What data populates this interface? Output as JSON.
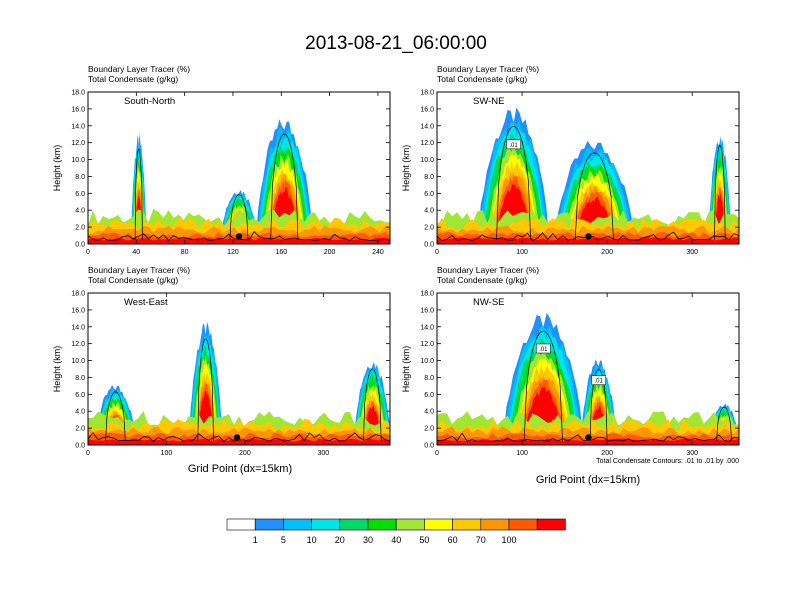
{
  "figure": {
    "title": "2013-08-21_06:00:00",
    "shared_xlabel": "Grid Point (dx=15km)",
    "contour_note": "Total Condensate Contours: .01 to .01 by .000"
  },
  "colorbar": {
    "labels": [
      "1",
      "5",
      "10",
      "20",
      "30",
      "40",
      "50",
      "60",
      "70",
      "100"
    ],
    "colors": [
      "#ffffff",
      "#1e90ff",
      "#00bfff",
      "#00e5e5",
      "#00d86a",
      "#00e000",
      "#a0e632",
      "#ffff00",
      "#ffc800",
      "#ff9600",
      "#ff5a00",
      "#ff0000"
    ]
  },
  "chart_data": [
    {
      "type": "heatmap",
      "panel": "South-North",
      "title_line1": "Boundary Layer Tracer    (%)",
      "title_line2": "Total Condensate    (g/kg)",
      "ylabel": "Height (km)",
      "xlabel": "",
      "xlim": [
        0,
        250
      ],
      "ylim": [
        0,
        18
      ],
      "xticks": [
        "0",
        "40",
        "80",
        "120",
        "160",
        "200",
        "240"
      ],
      "yticks": [
        "0.0",
        "2.0",
        "4.0",
        "6.0",
        "8.0",
        "10.0",
        "12.0",
        "14.0",
        "16.0",
        "18.0"
      ],
      "contour_labels": [],
      "plumes": [
        {
          "x": [
            36,
            48
          ],
          "top": 12.5
        },
        {
          "x": [
            140,
            185
          ],
          "top": 14.5
        },
        {
          "x": [
            110,
            140
          ],
          "top": 6.5
        }
      ],
      "dot_x": 125
    },
    {
      "type": "heatmap",
      "panel": "SW-NE",
      "title_line1": "Boundary Layer Tracer    (%)",
      "title_line2": "Total Condensate    (g/kg)",
      "ylabel": "Height (km)",
      "xlabel": "",
      "xlim": [
        0,
        355
      ],
      "ylim": [
        0,
        18
      ],
      "xticks": [
        "0",
        "100",
        "200",
        "300"
      ],
      "yticks": [
        "0.0",
        "2.0",
        "4.0",
        "6.0",
        "8.0",
        "10.0",
        "12.0",
        "14.0",
        "16.0",
        "18.0"
      ],
      "contour_labels": [
        ".01"
      ],
      "plumes": [
        {
          "x": [
            50,
            130
          ],
          "top": 15.5
        },
        {
          "x": [
            140,
            230
          ],
          "top": 12
        },
        {
          "x": [
            320,
            345
          ],
          "top": 13
        }
      ],
      "dot_x": 178
    },
    {
      "type": "heatmap",
      "panel": "West-East",
      "title_line1": "Boundary Layer Tracer    (%)",
      "title_line2": "Total Condensate    (g/kg)",
      "ylabel": "Height (km)",
      "xlabel": "",
      "xlim": [
        0,
        385
      ],
      "ylim": [
        0,
        18
      ],
      "xticks": [
        "0",
        "100",
        "200",
        "300"
      ],
      "yticks": [
        "0.0",
        "2.0",
        "4.0",
        "6.0",
        "8.0",
        "10.0",
        "12.0",
        "14.0",
        "16.0",
        "18.0"
      ],
      "contour_labels": [],
      "plumes": [
        {
          "x": [
            130,
            170
          ],
          "top": 14
        },
        {
          "x": [
            10,
            60
          ],
          "top": 7
        },
        {
          "x": [
            340,
            385
          ],
          "top": 10
        }
      ],
      "dot_x": 190
    },
    {
      "type": "heatmap",
      "panel": "NW-SE",
      "title_line1": "Boundary Layer Tracer    (%)",
      "title_line2": "Total Condensate    (g/kg)",
      "ylabel": "Height (km)",
      "xlabel": "",
      "xlim": [
        0,
        355
      ],
      "ylim": [
        0,
        18
      ],
      "xticks": [
        "0",
        "100",
        "200",
        "300"
      ],
      "yticks": [
        "0.0",
        "2.0",
        "4.0",
        "6.0",
        "8.0",
        "10.0",
        "12.0",
        "14.0",
        "16.0",
        "18.0"
      ],
      "contour_labels": [
        ".01",
        ".01"
      ],
      "plumes": [
        {
          "x": [
            80,
            170
          ],
          "top": 15
        },
        {
          "x": [
            170,
            210
          ],
          "top": 10
        },
        {
          "x": [
            320,
            355
          ],
          "top": 5
        }
      ],
      "dot_x": 178
    }
  ]
}
